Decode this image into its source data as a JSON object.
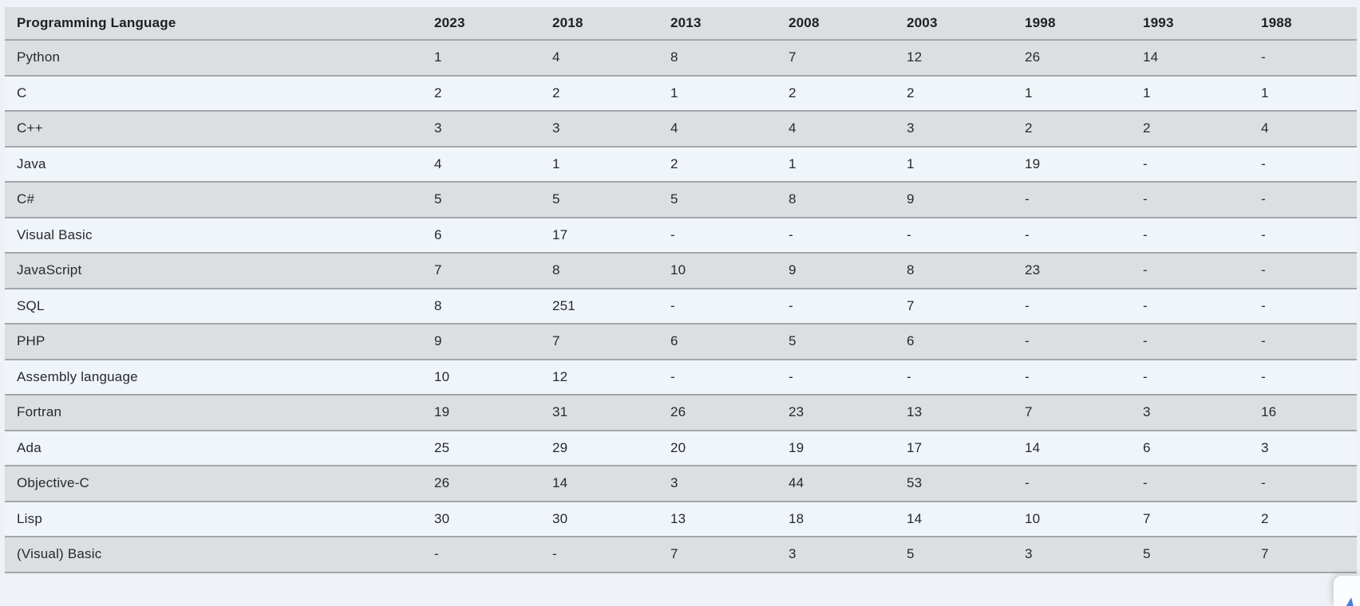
{
  "table": {
    "columns": [
      "Programming Language",
      "2023",
      "2018",
      "2013",
      "2008",
      "2003",
      "1998",
      "1993",
      "1988"
    ],
    "rows": [
      {
        "language": "Python",
        "ranks": [
          "1",
          "4",
          "8",
          "7",
          "12",
          "26",
          "14",
          "-"
        ]
      },
      {
        "language": "C",
        "ranks": [
          "2",
          "2",
          "1",
          "2",
          "2",
          "1",
          "1",
          "1"
        ]
      },
      {
        "language": "C++",
        "ranks": [
          "3",
          "3",
          "4",
          "4",
          "3",
          "2",
          "2",
          "4"
        ]
      },
      {
        "language": "Java",
        "ranks": [
          "4",
          "1",
          "2",
          "1",
          "1",
          "19",
          "-",
          "-"
        ]
      },
      {
        "language": "C#",
        "ranks": [
          "5",
          "5",
          "5",
          "8",
          "9",
          "-",
          "-",
          "-"
        ]
      },
      {
        "language": "Visual Basic",
        "ranks": [
          "6",
          "17",
          "-",
          "-",
          "-",
          "-",
          "-",
          "-"
        ]
      },
      {
        "language": "JavaScript",
        "ranks": [
          "7",
          "8",
          "10",
          "9",
          "8",
          "23",
          "-",
          "-"
        ]
      },
      {
        "language": "SQL",
        "ranks": [
          "8",
          "251",
          "-",
          "-",
          "7",
          "-",
          "-",
          "-"
        ]
      },
      {
        "language": "PHP",
        "ranks": [
          "9",
          "7",
          "6",
          "5",
          "6",
          "-",
          "-",
          "-"
        ]
      },
      {
        "language": "Assembly language",
        "ranks": [
          "10",
          "12",
          "-",
          "-",
          "-",
          "-",
          "-",
          "-"
        ]
      },
      {
        "language": "Fortran",
        "ranks": [
          "19",
          "31",
          "26",
          "23",
          "13",
          "7",
          "3",
          "16"
        ]
      },
      {
        "language": "Ada",
        "ranks": [
          "25",
          "29",
          "20",
          "19",
          "17",
          "14",
          "6",
          "3"
        ]
      },
      {
        "language": "Objective-C",
        "ranks": [
          "26",
          "14",
          "3",
          "44",
          "53",
          "-",
          "-",
          "-"
        ]
      },
      {
        "language": "Lisp",
        "ranks": [
          "30",
          "30",
          "13",
          "18",
          "14",
          "10",
          "7",
          "2"
        ]
      },
      {
        "language": "(Visual) Basic",
        "ranks": [
          "-",
          "-",
          "7",
          "3",
          "5",
          "3",
          "5",
          "7"
        ]
      }
    ]
  },
  "colors": {
    "page_bg": "#eef2f6",
    "row_dark": "#dbdfe1",
    "row_light": "#f0f5f9",
    "border": "#a3a7ab",
    "text": "#26292e",
    "header_text": "#1c2025",
    "accent_blue": "#4a7edb",
    "widget_bg": "#fbfcfd"
  }
}
